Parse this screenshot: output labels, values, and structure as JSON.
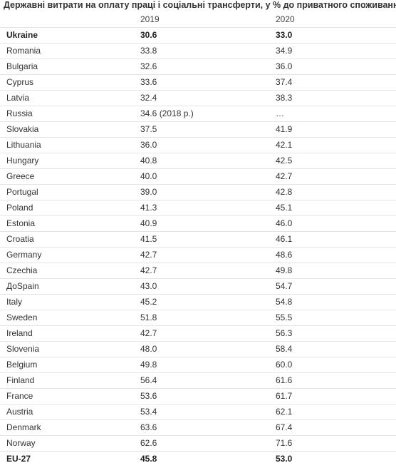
{
  "table": {
    "title": "Державні витрати на оплату праці і соціальні трансферти, у % до приватного споживання",
    "columns": [
      "",
      "2019",
      "2020"
    ],
    "rows": [
      {
        "country": "Ukraine",
        "y2019": "30.6",
        "y2020": "33.0",
        "bold": true
      },
      {
        "country": "Romania",
        "y2019": "33.8",
        "y2020": "34.9"
      },
      {
        "country": "Bulgaria",
        "y2019": "32.6",
        "y2020": "36.0"
      },
      {
        "country": "Cyprus",
        "y2019": "33.6",
        "y2020": "37.4"
      },
      {
        "country": "Latvia",
        "y2019": "32.4",
        "y2020": "38.3"
      },
      {
        "country": "Russia",
        "y2019": "34.6 (2018 р.)",
        "y2020": "…"
      },
      {
        "country": "Slovakia",
        "y2019": "37.5",
        "y2020": "41.9"
      },
      {
        "country": "Lithuania",
        "y2019": "36.0",
        "y2020": "42.1"
      },
      {
        "country": "Hungary",
        "y2019": "40.8",
        "y2020": "42.5"
      },
      {
        "country": "Greece",
        "y2019": "40.0",
        "y2020": "42.7"
      },
      {
        "country": "Portugal",
        "y2019": "39.0",
        "y2020": "42.8"
      },
      {
        "country": "Poland",
        "y2019": "41.3",
        "y2020": "45.1"
      },
      {
        "country": "Estonia",
        "y2019": "40.9",
        "y2020": "46.0"
      },
      {
        "country": "Croatia",
        "y2019": "41.5",
        "y2020": "46.1"
      },
      {
        "country": "Germany",
        "y2019": "42.7",
        "y2020": "48.6"
      },
      {
        "country": "Czechia",
        "y2019": "42.7",
        "y2020": "49.8"
      },
      {
        "country": "ДоSpain",
        "y2019": "43.0",
        "y2020": "54.7"
      },
      {
        "country": "Italy",
        "y2019": "45.2",
        "y2020": "54.8"
      },
      {
        "country": "Sweden",
        "y2019": "51.8",
        "y2020": "55.5"
      },
      {
        "country": "Ireland",
        "y2019": "42.7",
        "y2020": "56.3"
      },
      {
        "country": "Slovenia",
        "y2019": "48.0",
        "y2020": "58.4"
      },
      {
        "country": "Belgium",
        "y2019": "49.8",
        "y2020": "60.0"
      },
      {
        "country": "Finland",
        "y2019": "56.4",
        "y2020": "61.6"
      },
      {
        "country": "France",
        "y2019": "53.6",
        "y2020": "61.7"
      },
      {
        "country": "Austria",
        "y2019": "53.4",
        "y2020": "62.1"
      },
      {
        "country": "Denmark",
        "y2019": "63.6",
        "y2020": "67.4"
      },
      {
        "country": "Norway",
        "y2019": "62.6",
        "y2020": "71.6"
      },
      {
        "country": "EU-27",
        "y2019": "45.8",
        "y2020": "53.0",
        "bold": true
      }
    ]
  }
}
